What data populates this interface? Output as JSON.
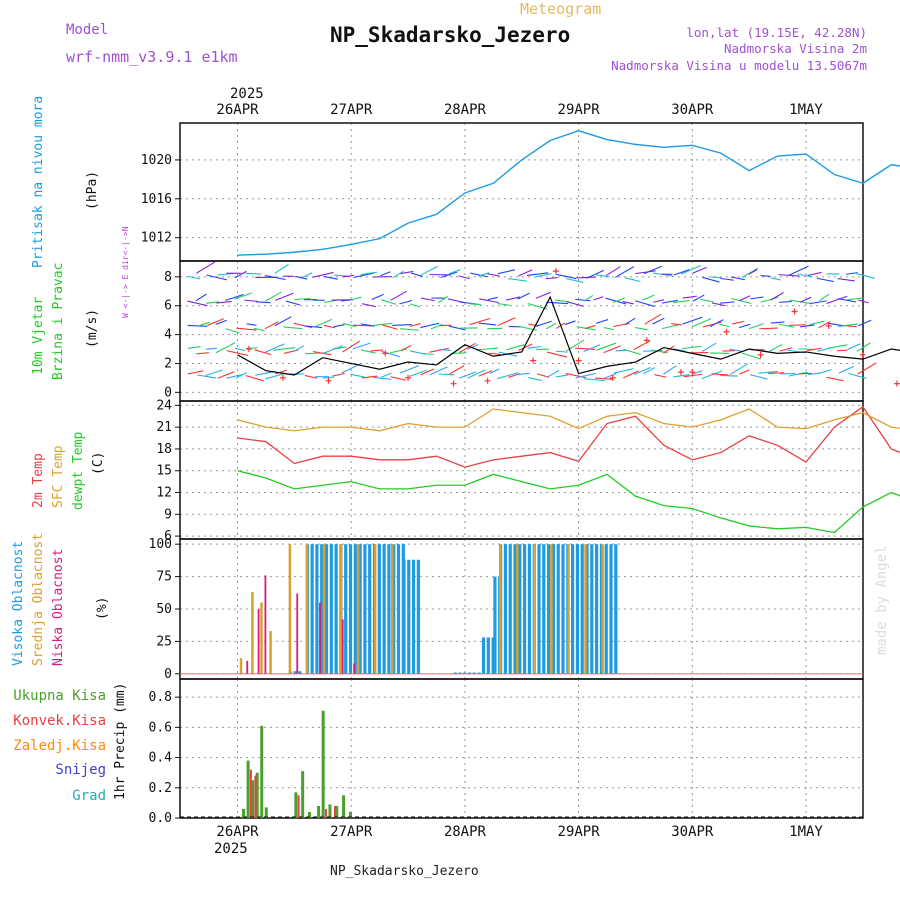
{
  "header": {
    "model_label": "Model",
    "model_name": "wrf-nmm_v3.9.1 e1km",
    "kind": "Meteogram",
    "station": "NP_Skadarsko_Jezero",
    "coords": "lon,lat (19.15E, 42.28N)",
    "elevation": "Nadmorska Visina 2m",
    "model_elevation": "Nadmorska Visina u modelu 13.5067m",
    "watermark": "made by Angel",
    "footer_station": "NP_Skadarsko_Jezero"
  },
  "dates": [
    "26APR",
    "27APR",
    "28APR",
    "29APR",
    "30APR",
    "1MAY"
  ],
  "year": "2025",
  "colors": {
    "pressure": "#1e9be0",
    "wind_speed": "#000000",
    "wind_gust": "#ff3030",
    "t2m": "#e84040",
    "tsfc": "#e0a030",
    "dewpt": "#22cc22",
    "cloud_high": "#1e9be0",
    "cloud_mid": "#d9a030",
    "cloud_low": "#d81b80",
    "precip_total": "#4aa02c",
    "precip_conv": "#e84040",
    "precip_frz": "#ff8c00",
    "snow": "#4040d0",
    "hail": "#20b0b0"
  },
  "chart_data": [
    {
      "type": "line",
      "panel": "pressure",
      "ylabel_lines": [
        "Pritisak na nivou mora",
        "(hPa)"
      ],
      "yticks": [
        1012,
        1016,
        1020
      ],
      "ylim": [
        1009.6,
        1023.8
      ],
      "x_days": [
        0,
        0.25,
        0.5,
        0.75,
        1.0,
        1.25,
        1.5,
        1.75,
        2.0,
        2.25,
        2.5,
        2.75,
        3.0,
        3.25,
        3.5,
        3.75,
        4.0,
        4.25,
        4.5,
        4.75,
        5.0,
        5.25,
        5.5,
        5.75,
        6.0,
        6.25
      ],
      "series": [
        {
          "name": "",
          "values": [
            1010.2,
            1010.3,
            1010.5,
            1010.8,
            1011.3,
            1011.9,
            1013.5,
            1014.4,
            1016.6,
            1017.6,
            1020.0,
            1022.0,
            1023.0,
            1022.1,
            1021.6,
            1021.3,
            1021.5,
            1020.7,
            1018.9,
            1020.4,
            1020.6,
            1018.5,
            1017.6,
            1019.5,
            1019.1,
            1017.0
          ]
        }
      ]
    },
    {
      "type": "line",
      "panel": "wind",
      "ylabel_lines": [
        "10m Vjetar",
        "Brzina i Pravac",
        "(m/s)"
      ],
      "yticks": [
        0,
        2,
        4,
        6,
        8
      ],
      "ylim": [
        -0.6,
        9.1
      ],
      "series": [
        {
          "name": "",
          "values": [
            2.6,
            1.5,
            1.2,
            2.4,
            2.0,
            1.6,
            2.1,
            1.9,
            3.3,
            2.5,
            2.8,
            6.6,
            1.3,
            1.8,
            2.1,
            3.1,
            2.7,
            2.3,
            3.0,
            2.7,
            2.8,
            2.5,
            2.3,
            3.0,
            2.7,
            3.4
          ]
        }
      ],
      "gusts": [
        [
          0.1,
          3.0
        ],
        [
          0.4,
          1.0
        ],
        [
          0.8,
          0.8
        ],
        [
          1.3,
          2.7
        ],
        [
          1.5,
          1.0
        ],
        [
          1.9,
          0.6
        ],
        [
          2.2,
          0.8
        ],
        [
          2.6,
          2.2
        ],
        [
          2.8,
          8.4
        ],
        [
          3.0,
          2.2
        ],
        [
          3.3,
          1.0
        ],
        [
          3.6,
          3.6
        ],
        [
          3.9,
          1.4
        ],
        [
          4.0,
          1.4
        ],
        [
          4.3,
          4.2
        ],
        [
          4.6,
          2.6
        ],
        [
          4.9,
          5.6
        ],
        [
          5.2,
          4.6
        ],
        [
          5.5,
          2.6
        ],
        [
          5.8,
          0.6
        ],
        [
          6.1,
          2.8
        ],
        [
          6.3,
          4.7
        ]
      ],
      "direction_key": "W <-|-> E   dir<-|->N"
    },
    {
      "type": "line",
      "panel": "temperature",
      "ylabel_lines": [
        "2m Temp",
        "SFC Temp",
        "dewpt Temp",
        "(C)"
      ],
      "yticks": [
        6,
        9,
        12,
        15,
        18,
        21,
        24
      ],
      "ylim": [
        5.6,
        24.6
      ],
      "x_days": [
        0,
        0.25,
        0.5,
        0.75,
        1.0,
        1.25,
        1.5,
        1.75,
        2.0,
        2.25,
        2.5,
        2.75,
        3.0,
        3.25,
        3.5,
        3.75,
        4.0,
        4.25,
        4.5,
        4.75,
        5.0,
        5.25,
        5.5,
        5.75,
        6.0,
        6.25
      ],
      "series": [
        {
          "name": "2m Temp",
          "values": [
            19.5,
            19.0,
            16.0,
            17.0,
            17.0,
            16.5,
            16.5,
            17.0,
            15.5,
            16.5,
            17.0,
            17.5,
            16.3,
            21.5,
            22.5,
            18.5,
            16.5,
            17.5,
            19.8,
            18.5,
            16.2,
            21.0,
            23.8,
            18.0,
            16.5,
            21.5
          ]
        },
        {
          "name": "SFC Temp",
          "values": [
            22.0,
            21.0,
            20.5,
            21.0,
            21.0,
            20.5,
            21.5,
            21.0,
            21.0,
            23.5,
            23.0,
            22.5,
            20.8,
            22.5,
            23.0,
            21.5,
            21.0,
            22.0,
            23.5,
            21.0,
            20.8,
            22.0,
            23.0,
            21.0,
            20.5,
            24.0
          ]
        },
        {
          "name": "dewpt Temp",
          "values": [
            15.0,
            14.0,
            12.5,
            13.0,
            13.5,
            12.5,
            12.5,
            13.0,
            13.0,
            14.5,
            13.5,
            12.5,
            13.0,
            14.5,
            11.5,
            10.2,
            9.8,
            8.5,
            7.4,
            7.0,
            7.2,
            6.5,
            10.0,
            12.0,
            10.5,
            11.5
          ]
        }
      ]
    },
    {
      "type": "bar",
      "panel": "cloud",
      "ylabel_lines": [
        "Visoka Oblacnost",
        "Srednja Oblacnost",
        "Niska Oblacnost",
        "(%)"
      ],
      "yticks": [
        0,
        25,
        50,
        75,
        100
      ],
      "ylim": [
        -4,
        104
      ],
      "series": [
        {
          "name": "Visoka Oblacnost",
          "segments": [
            [
              0.45,
              0.55,
              2
            ],
            [
              0.6,
              1.45,
              100
            ],
            [
              1.45,
              1.6,
              88
            ],
            [
              1.9,
              2.15,
              1
            ],
            [
              2.15,
              2.25,
              28
            ],
            [
              2.25,
              2.3,
              75
            ],
            [
              2.3,
              3.35,
              100
            ]
          ]
        },
        {
          "name": "Srednja Oblacnost",
          "points": [
            [
              0.02,
              12
            ],
            [
              0.12,
              63
            ],
            [
              0.2,
              55
            ],
            [
              0.28,
              33
            ],
            [
              0.45,
              100
            ],
            [
              0.6,
              100
            ],
            [
              0.75,
              100
            ],
            [
              0.9,
              100
            ],
            [
              1.05,
              100
            ],
            [
              1.2,
              100
            ],
            [
              1.35,
              100
            ],
            [
              2.3,
              100
            ],
            [
              2.45,
              100
            ],
            [
              2.6,
              100
            ],
            [
              2.75,
              100
            ],
            [
              2.9,
              100
            ],
            [
              3.05,
              100
            ],
            [
              3.2,
              100
            ]
          ]
        },
        {
          "name": "Niska Oblacnost",
          "points": [
            [
              0.06,
              10
            ],
            [
              0.16,
              50
            ],
            [
              0.22,
              76
            ],
            [
              0.5,
              62
            ],
            [
              0.7,
              55
            ],
            [
              0.9,
              42
            ],
            [
              1.0,
              8
            ]
          ]
        }
      ]
    },
    {
      "type": "bar",
      "panel": "precipitation",
      "ylabel_lines": [
        "1hr Precip (mm)"
      ],
      "legend": [
        "Ukupna Kisa",
        "Konvek.Kisa",
        "Zaledj.Kisa",
        "Snijeg",
        "Grad"
      ],
      "yticks": [
        0.0,
        0.2,
        0.4,
        0.6,
        0.8
      ],
      "ylim": [
        0,
        0.92
      ],
      "series": [
        {
          "name": "Ukupna Kisa",
          "points": [
            [
              0.04,
              0.06
            ],
            [
              0.08,
              0.38
            ],
            [
              0.12,
              0.25
            ],
            [
              0.16,
              0.3
            ],
            [
              0.2,
              0.61
            ],
            [
              0.24,
              0.07
            ],
            [
              0.5,
              0.17
            ],
            [
              0.56,
              0.31
            ],
            [
              0.62,
              0.04
            ],
            [
              0.7,
              0.08
            ],
            [
              0.74,
              0.71
            ],
            [
              0.8,
              0.09
            ],
            [
              0.86,
              0.08
            ],
            [
              0.92,
              0.15
            ],
            [
              0.98,
              0.04
            ]
          ]
        },
        {
          "name": "Konvek.Kisa",
          "points": [
            [
              0.1,
              0.32
            ],
            [
              0.14,
              0.28
            ],
            [
              0.52,
              0.15
            ],
            [
              0.76,
              0.06
            ],
            [
              0.84,
              0.08
            ]
          ]
        }
      ]
    }
  ]
}
